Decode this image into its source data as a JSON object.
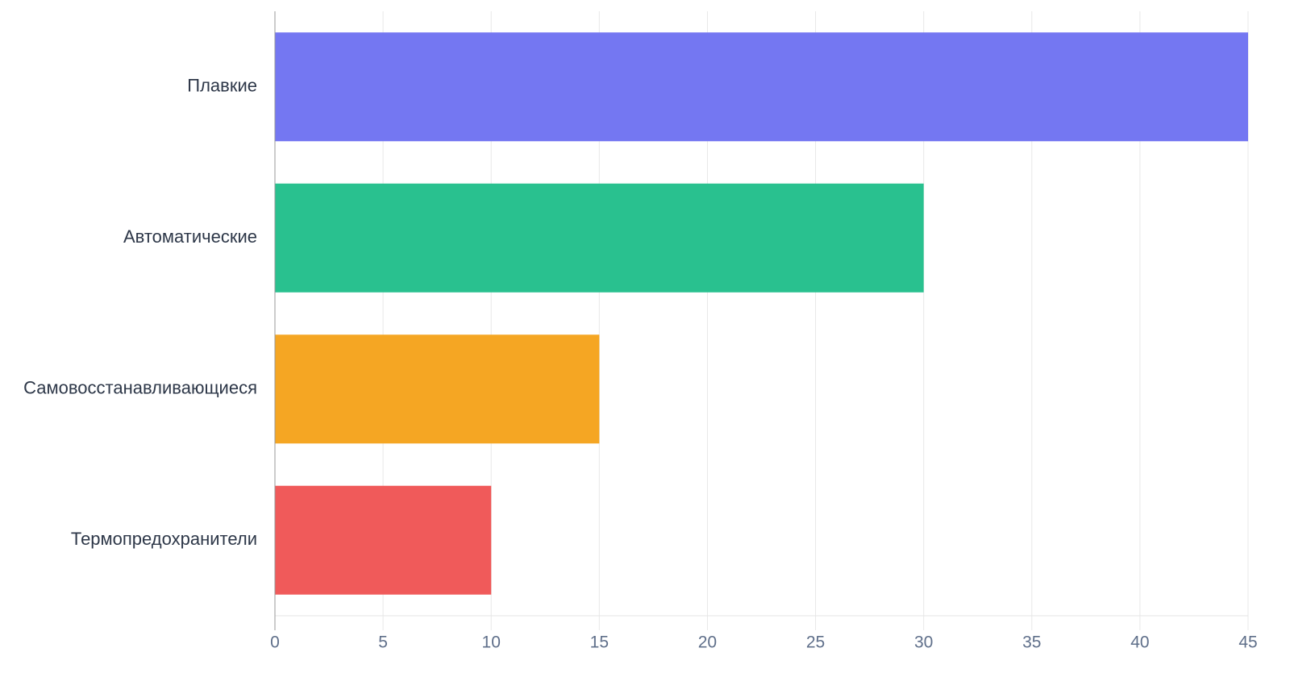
{
  "chart_data": {
    "type": "bar",
    "orientation": "horizontal",
    "categories": [
      "Плавкие",
      "Автоматические",
      "Самовосстанавливающиеся",
      "Термопредохранители"
    ],
    "values": [
      45,
      30,
      15,
      10
    ],
    "colors": [
      "#7477f2",
      "#29c18f",
      "#f5a623",
      "#f05a5a"
    ],
    "xlim": [
      0,
      45
    ],
    "xticks": [
      0,
      5,
      10,
      15,
      20,
      25,
      30,
      35,
      40,
      45
    ],
    "grid": true
  }
}
